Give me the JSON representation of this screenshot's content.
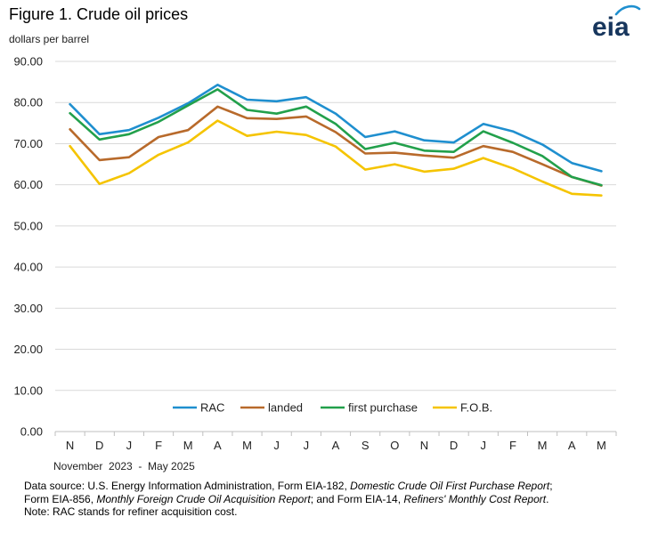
{
  "header": {
    "title": "Figure 1. Crude oil prices",
    "unit_label": "dollars per barrel",
    "logo_text": "eia"
  },
  "colors": {
    "RAC": "#1f8fcf",
    "landed": "#b86a2b",
    "first_purchase": "#22a04b",
    "fob": "#f5c400",
    "grid": "#d9d9d9",
    "logo": "#17365d",
    "logo_accent": "#1f8fcf"
  },
  "chart_data": {
    "type": "line",
    "categories": [
      "N",
      "D",
      "J",
      "F",
      "M",
      "A",
      "M",
      "J",
      "J",
      "A",
      "S",
      "O",
      "N",
      "D",
      "J",
      "F",
      "M",
      "A",
      "M"
    ],
    "ylim": [
      0,
      90
    ],
    "yticks": [
      "0.00",
      "10.00",
      "20.00",
      "30.00",
      "40.00",
      "50.00",
      "60.00",
      "70.00",
      "80.00",
      "90.00"
    ],
    "grid": true,
    "legend_position": "bottom-inside",
    "series": [
      {
        "name": "RAC",
        "color_key": "RAC",
        "values": [
          79.6,
          72.3,
          73.3,
          76.3,
          79.8,
          84.3,
          80.7,
          80.3,
          81.3,
          77.3,
          71.6,
          73.0,
          70.8,
          70.3,
          74.8,
          73.0,
          69.8,
          65.3,
          63.3
        ]
      },
      {
        "name": "landed",
        "color_key": "landed",
        "values": [
          73.5,
          66.0,
          66.7,
          71.6,
          73.3,
          79.0,
          76.2,
          76.0,
          76.6,
          72.8,
          67.6,
          67.8,
          67.1,
          66.6,
          69.4,
          68.0,
          65.0,
          61.9,
          59.8
        ]
      },
      {
        "name": "first purchase",
        "color_key": "first_purchase",
        "values": [
          77.4,
          71.0,
          72.3,
          75.3,
          79.3,
          83.2,
          78.2,
          77.3,
          79.0,
          74.8,
          68.7,
          70.2,
          68.3,
          68.0,
          73.0,
          70.2,
          67.0,
          61.9,
          59.9
        ]
      },
      {
        "name": "F.O.B.",
        "color_key": "fob",
        "values": [
          69.4,
          60.2,
          62.8,
          67.3,
          70.3,
          75.6,
          71.9,
          72.9,
          72.1,
          69.3,
          63.7,
          65.0,
          63.2,
          63.9,
          66.5,
          64.0,
          60.8,
          57.8,
          57.4
        ]
      }
    ]
  },
  "footer": {
    "date_range": "November  2023  -  May 2025",
    "source_line1_a": "Data source: U.S. Energy Information Administration, Form EIA-182, ",
    "source_line1_b": "Domestic Crude Oil First Purchase Report",
    "source_line1_c": ";",
    "source_line2_a": "Form EIA-856, ",
    "source_line2_b": "Monthly Foreign Crude Oil Acquisition Report",
    "source_line2_c": "; and Form EIA-14, ",
    "source_line2_d": "Refiners' Monthly Cost Report",
    "source_line2_e": ".",
    "note": "Note: RAC stands for refiner acquisition cost."
  }
}
